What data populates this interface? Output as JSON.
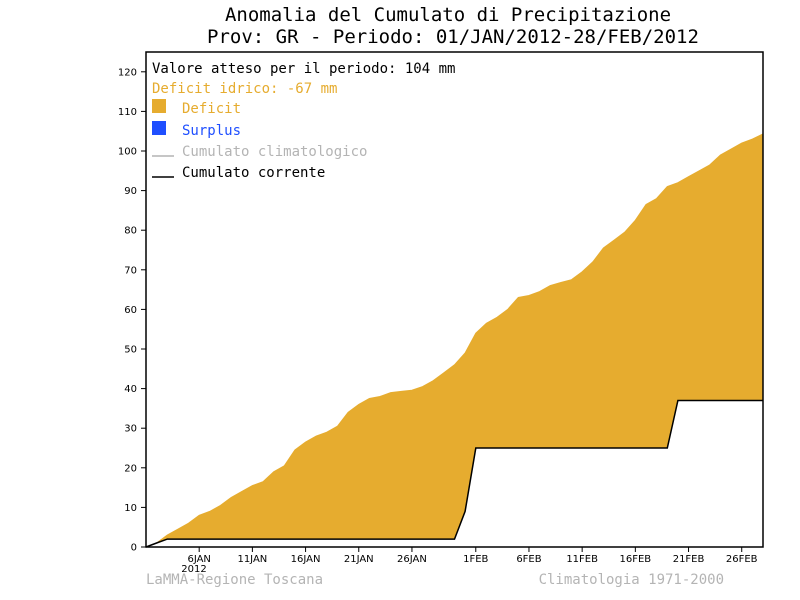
{
  "chart_data": {
    "type": "area",
    "title_line1": "Anomalia del Cumulato di Precipitazione",
    "title_line2": "Prov: GR - Periodo: 01/JAN/2012-28/FEB/2012",
    "ylim": [
      0,
      125
    ],
    "xlim": [
      1,
      59
    ],
    "y_ticks": [
      0,
      10,
      20,
      30,
      40,
      50,
      60,
      70,
      80,
      90,
      100,
      110,
      120
    ],
    "x_ticks": [
      {
        "day": 6,
        "label": "6JAN"
      },
      {
        "day": 11,
        "label": "11JAN"
      },
      {
        "day": 16,
        "label": "16JAN"
      },
      {
        "day": 21,
        "label": "21JAN"
      },
      {
        "day": 26,
        "label": "26JAN"
      },
      {
        "day": 32,
        "label": "1FEB"
      },
      {
        "day": 37,
        "label": "6FEB"
      },
      {
        "day": 42,
        "label": "11FEB"
      },
      {
        "day": 47,
        "label": "16FEB"
      },
      {
        "day": 52,
        "label": "21FEB"
      },
      {
        "day": 57,
        "label": "26FEB"
      }
    ],
    "year_label": "2012",
    "legend": {
      "expected": "Valore atteso per il periodo: 104 mm",
      "deficit_text": "Deficit idrico: -67 mm",
      "deficit_label": "Deficit",
      "surplus_label": "Surplus",
      "climatological_label": "Cumulato climatologico",
      "current_label": "Cumulato corrente"
    },
    "colors": {
      "deficit": "#e6ac2f",
      "surplus": "#1f4fff",
      "climatological": "#b4b4b4",
      "current": "#000000",
      "deficit_text": "#e6ac2f",
      "surplus_text": "#1f4fff",
      "footer_text": "#b4b4b4"
    },
    "series": [
      {
        "name": "Cumulato climatologico",
        "x": [
          1,
          2,
          3,
          4,
          5,
          6,
          7,
          8,
          9,
          10,
          11,
          12,
          13,
          14,
          15,
          16,
          17,
          18,
          19,
          20,
          21,
          22,
          23,
          24,
          25,
          26,
          27,
          28,
          29,
          30,
          31,
          32,
          33,
          34,
          35,
          36,
          37,
          38,
          39,
          40,
          41,
          42,
          43,
          44,
          45,
          46,
          47,
          48,
          49,
          50,
          51,
          52,
          53,
          54,
          55,
          56,
          57,
          58,
          59
        ],
        "values": [
          0,
          1,
          3,
          4.5,
          6,
          8,
          9,
          10.5,
          12.5,
          14,
          15.5,
          16.5,
          19,
          20.5,
          24.5,
          26.5,
          28,
          29,
          30.5,
          34,
          36,
          37.5,
          38,
          39,
          39.3,
          39.6,
          40.5,
          42,
          44,
          46,
          49,
          54,
          56.5,
          58,
          60,
          63,
          63.5,
          64.5,
          66,
          66.8,
          67.5,
          69.5,
          72,
          75.5,
          77.5,
          79.5,
          82.5,
          86.5,
          88,
          91,
          92,
          93.5,
          95,
          96.5,
          99,
          100.5,
          102,
          103,
          104.3
        ]
      },
      {
        "name": "Cumulato corrente",
        "x": [
          1,
          2,
          3,
          4,
          5,
          6,
          7,
          8,
          9,
          10,
          11,
          12,
          13,
          14,
          15,
          16,
          17,
          18,
          19,
          20,
          21,
          22,
          23,
          24,
          25,
          26,
          27,
          28,
          29,
          30,
          31,
          32,
          33,
          34,
          35,
          36,
          37,
          38,
          39,
          40,
          41,
          42,
          43,
          44,
          45,
          46,
          47,
          48,
          49,
          50,
          51,
          52,
          53,
          54,
          55,
          56,
          57,
          58,
          59
        ],
        "values": [
          0,
          1,
          2,
          2,
          2,
          2,
          2,
          2,
          2,
          2,
          2,
          2,
          2,
          2,
          2,
          2,
          2,
          2,
          2,
          2,
          2,
          2,
          2,
          2,
          2,
          2,
          2,
          2,
          2,
          2,
          9,
          25,
          25,
          25,
          25,
          25,
          25,
          25,
          25,
          25,
          25,
          25,
          25,
          25,
          25,
          25,
          25,
          25,
          25,
          25,
          37,
          37,
          37,
          37,
          37,
          37,
          37,
          37,
          37
        ]
      }
    ]
  },
  "footer": {
    "left": "LaMMA-Regione Toscana",
    "right": "Climatologia 1971-2000"
  }
}
